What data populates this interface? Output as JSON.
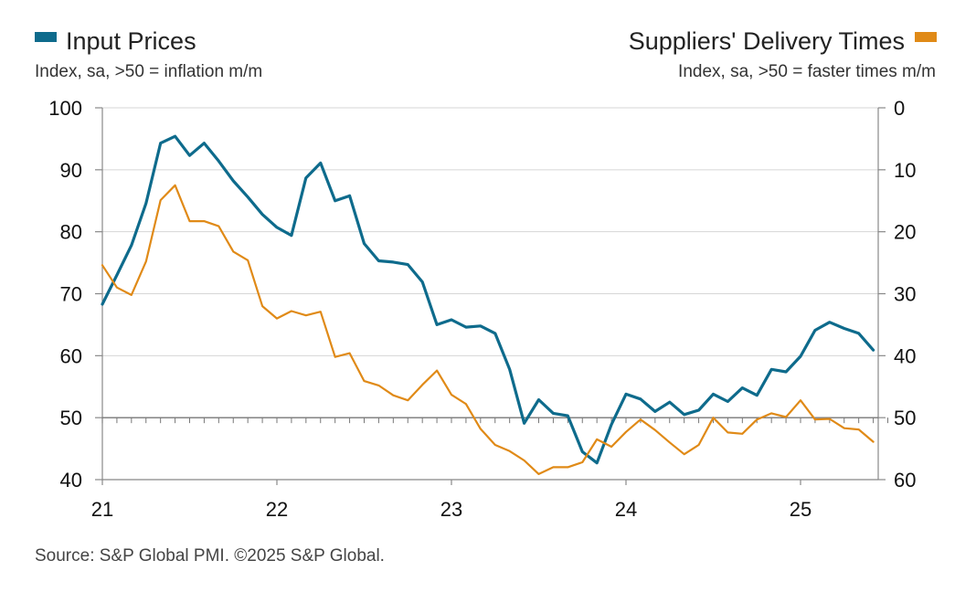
{
  "legend": {
    "left": {
      "title": "Input Prices",
      "subtitle": "Index, sa, >50 = inflation m/m",
      "color": "#0e6b8c"
    },
    "right": {
      "title": "Suppliers' Delivery Times",
      "subtitle": "Index, sa, >50 = faster times m/m",
      "color": "#e08a17"
    }
  },
  "source": "Source: S&P Global PMI. ©2025 S&P Global.",
  "chart_data": {
    "type": "line",
    "x_ticks": [
      "21",
      "22",
      "23",
      "24",
      "25"
    ],
    "x_start": "2021-01",
    "x_end": "2025-06",
    "y_left": {
      "label": "Input Prices",
      "ylim": [
        40,
        100
      ],
      "ticks": [
        "100",
        "90",
        "80",
        "70",
        "60",
        "50",
        "40"
      ]
    },
    "y_right": {
      "label": "Suppliers' Delivery Times",
      "ylim": [
        0,
        60
      ],
      "inverted": true,
      "ticks": [
        "0",
        "10",
        "20",
        "30",
        "40",
        "50",
        "60"
      ]
    },
    "reference_line": 50,
    "grid": "horizontal",
    "series": [
      {
        "name": "Input Prices",
        "axis": "left",
        "color": "#0e6b8c",
        "values": [
          68.3,
          73.0,
          77.8,
          84.6,
          94.3,
          95.4,
          92.3,
          94.3,
          91.4,
          88.2,
          85.6,
          82.8,
          80.7,
          79.4,
          88.7,
          91.1,
          85.0,
          85.8,
          78.1,
          75.3,
          75.1,
          74.7,
          71.9,
          65.0,
          65.8,
          64.6,
          64.8,
          63.6,
          57.8,
          49.1,
          52.9,
          50.7,
          50.3,
          44.5,
          42.7,
          48.9,
          53.8,
          53.0,
          51.0,
          52.5,
          50.5,
          51.2,
          53.8,
          52.6,
          54.8,
          53.6,
          57.8,
          57.4,
          59.9,
          64.1,
          65.4,
          64.4,
          63.6,
          60.9
        ]
      },
      {
        "name": "Suppliers' Delivery Times",
        "axis": "right",
        "color": "#e08a17",
        "values": [
          25.4,
          29.0,
          30.2,
          24.8,
          14.9,
          12.5,
          18.3,
          18.3,
          19.1,
          23.2,
          24.6,
          32.0,
          34.0,
          32.8,
          33.5,
          32.9,
          40.2,
          39.6,
          44.1,
          44.8,
          46.4,
          47.2,
          44.7,
          42.4,
          46.3,
          47.8,
          51.8,
          54.4,
          55.4,
          56.9,
          59.1,
          58.0,
          58.0,
          57.2,
          53.5,
          54.7,
          52.3,
          50.3,
          52.0,
          54.0,
          55.9,
          54.4,
          50.0,
          52.4,
          52.6,
          50.3,
          49.3,
          49.9,
          47.2,
          50.3,
          50.2,
          51.7,
          51.9,
          53.9
        ]
      }
    ]
  }
}
